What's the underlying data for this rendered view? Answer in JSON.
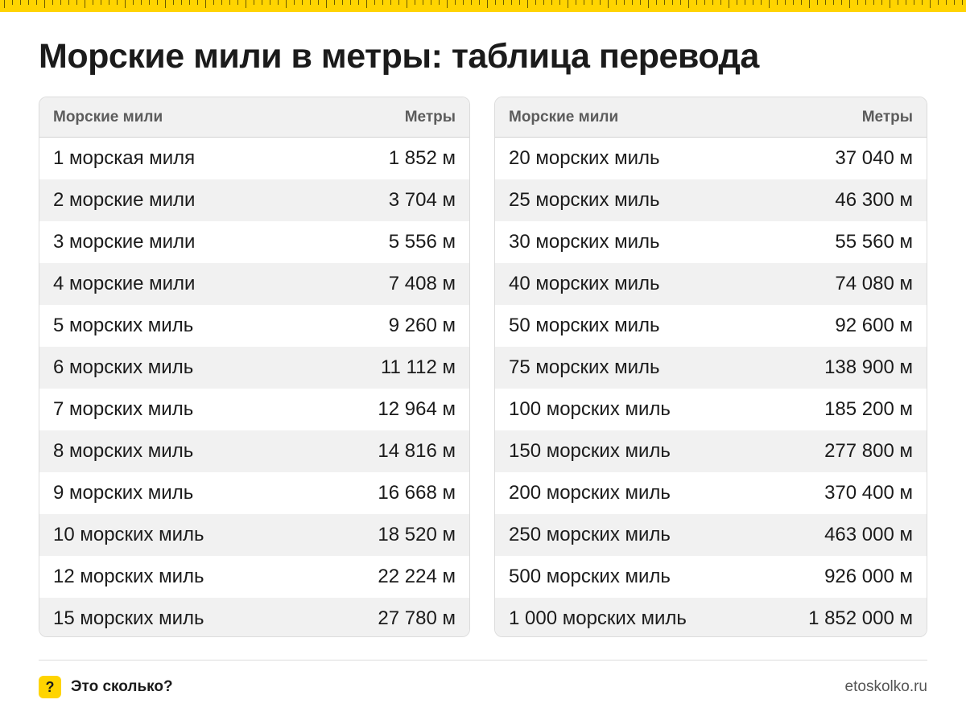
{
  "title": "Морские мили в метры: таблица перевода",
  "left_table": {
    "headers": [
      "Морские мили",
      "Метры"
    ],
    "rows": [
      [
        "1 морская миля",
        "1 852 м"
      ],
      [
        "2 морские мили",
        "3 704 м"
      ],
      [
        "3 морские мили",
        "5 556 м"
      ],
      [
        "4 морские мили",
        "7 408 м"
      ],
      [
        "5 морских миль",
        "9 260 м"
      ],
      [
        "6 морских миль",
        "11 112 м"
      ],
      [
        "7 морских миль",
        "12 964 м"
      ],
      [
        "8 морских миль",
        "14 816 м"
      ],
      [
        "9 морских миль",
        "16 668 м"
      ],
      [
        "10 морских миль",
        "18 520 м"
      ],
      [
        "12 морских миль",
        "22 224 м"
      ],
      [
        "15 морских миль",
        "27 780 м"
      ]
    ]
  },
  "right_table": {
    "headers": [
      "Морские мили",
      "Метры"
    ],
    "rows": [
      [
        "20 морских миль",
        "37 040 м"
      ],
      [
        "25 морских миль",
        "46 300 м"
      ],
      [
        "30 морских миль",
        "55 560 м"
      ],
      [
        "40 морских миль",
        "74 080 м"
      ],
      [
        "50 морских миль",
        "92 600 м"
      ],
      [
        "75 морских миль",
        "138 900 м"
      ],
      [
        "100 морских миль",
        "185 200 м"
      ],
      [
        "150 морских миль",
        "277 800 м"
      ],
      [
        "200 морских миль",
        "370 400 м"
      ],
      [
        "250 морских миль",
        "463 000 м"
      ],
      [
        "500 морских миль",
        "926 000 м"
      ],
      [
        "1 000 морских миль",
        "1 852 000 м"
      ]
    ]
  },
  "footer": {
    "brand_icon": "?",
    "brand_name": "Это сколько?",
    "site": "etoskolko.ru"
  },
  "colors": {
    "accent": "#ffd400",
    "stripe": "#f1f1f1",
    "text": "#1b1b1b",
    "header_text": "#5c5c5c"
  }
}
